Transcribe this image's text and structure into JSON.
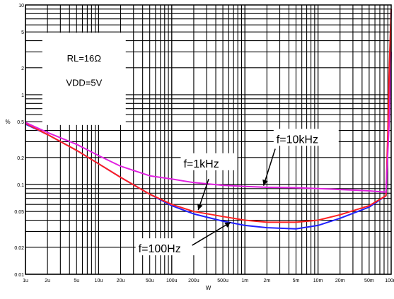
{
  "chart_data": {
    "type": "line",
    "log_x": true,
    "log_y": true,
    "xlim": [
      1e-06,
      0.1
    ],
    "ylim": [
      0.01,
      10
    ],
    "grid": true,
    "xlabel": "W",
    "ylabel": "%",
    "x_ticks": [
      {
        "v": 1e-06,
        "label": "1u"
      },
      {
        "v": 2e-06,
        "label": "2u"
      },
      {
        "v": 5e-06,
        "label": "5u"
      },
      {
        "v": 1e-05,
        "label": "10u"
      },
      {
        "v": 2e-05,
        "label": "20u"
      },
      {
        "v": 5e-05,
        "label": "50u"
      },
      {
        "v": 0.0001,
        "label": "100u"
      },
      {
        "v": 0.0002,
        "label": "200u"
      },
      {
        "v": 0.0005,
        "label": "500u"
      },
      {
        "v": 0.001,
        "label": "1m"
      },
      {
        "v": 0.002,
        "label": "2m"
      },
      {
        "v": 0.005,
        "label": "5m"
      },
      {
        "v": 0.01,
        "label": "10m"
      },
      {
        "v": 0.02,
        "label": "20m"
      },
      {
        "v": 0.05,
        "label": "50m"
      },
      {
        "v": 0.1,
        "label": "100m"
      }
    ],
    "y_ticks": [
      {
        "v": 0.01,
        "label": "0.01"
      },
      {
        "v": 0.02,
        "label": "0.02"
      },
      {
        "v": 0.05,
        "label": "0.05"
      },
      {
        "v": 0.1,
        "label": "0.1"
      },
      {
        "v": 0.2,
        "label": "0.2"
      },
      {
        "v": 0.5,
        "label": "0.5"
      },
      {
        "v": 1,
        "label": "1"
      },
      {
        "v": 2,
        "label": "2"
      },
      {
        "v": 5,
        "label": "5"
      },
      {
        "v": 10,
        "label": "10"
      }
    ],
    "conditions": [
      "RL=16Ω",
      "VDD=5V"
    ],
    "series": [
      {
        "name": "f=100Hz",
        "color": "#2020ff",
        "x": [
          1e-06,
          2e-06,
          5e-06,
          1e-05,
          2e-05,
          5e-05,
          0.0001,
          0.0002,
          0.0005,
          0.001,
          0.002,
          0.005,
          0.01,
          0.02,
          0.05,
          0.085,
          0.09,
          0.095,
          0.1
        ],
        "y": [
          0.47,
          0.36,
          0.24,
          0.17,
          0.12,
          0.078,
          0.058,
          0.047,
          0.039,
          0.035,
          0.033,
          0.032,
          0.035,
          0.042,
          0.056,
          0.075,
          0.3,
          2,
          9
        ]
      },
      {
        "name": "f=1kHz",
        "color": "#ff2020",
        "x": [
          1e-06,
          2e-06,
          5e-06,
          1e-05,
          2e-05,
          5e-05,
          0.0001,
          0.0002,
          0.0005,
          0.001,
          0.002,
          0.005,
          0.01,
          0.02,
          0.05,
          0.085,
          0.09,
          0.095,
          0.1
        ],
        "y": [
          0.48,
          0.36,
          0.24,
          0.17,
          0.12,
          0.078,
          0.06,
          0.05,
          0.044,
          0.04,
          0.038,
          0.038,
          0.04,
          0.046,
          0.058,
          0.075,
          0.4,
          2.5,
          9
        ]
      },
      {
        "name": "f=10kHz",
        "color": "#e020e0",
        "x": [
          1e-06,
          2e-06,
          5e-06,
          1e-05,
          2e-05,
          5e-05,
          0.0001,
          0.0002,
          0.0005,
          0.001,
          0.002,
          0.005,
          0.01,
          0.02,
          0.05,
          0.085,
          0.095,
          0.1
        ],
        "y": [
          0.49,
          0.38,
          0.28,
          0.21,
          0.16,
          0.125,
          0.115,
          0.105,
          0.098,
          0.095,
          0.093,
          0.092,
          0.09,
          0.088,
          0.085,
          0.082,
          0.6,
          3
        ]
      }
    ],
    "annotations": [
      {
        "text": "f=10kHz",
        "series": "f=10kHz"
      },
      {
        "text": "f=1kHz",
        "series": "f=1kHz"
      },
      {
        "text": "f=100Hz",
        "series": "f=100Hz"
      }
    ]
  }
}
